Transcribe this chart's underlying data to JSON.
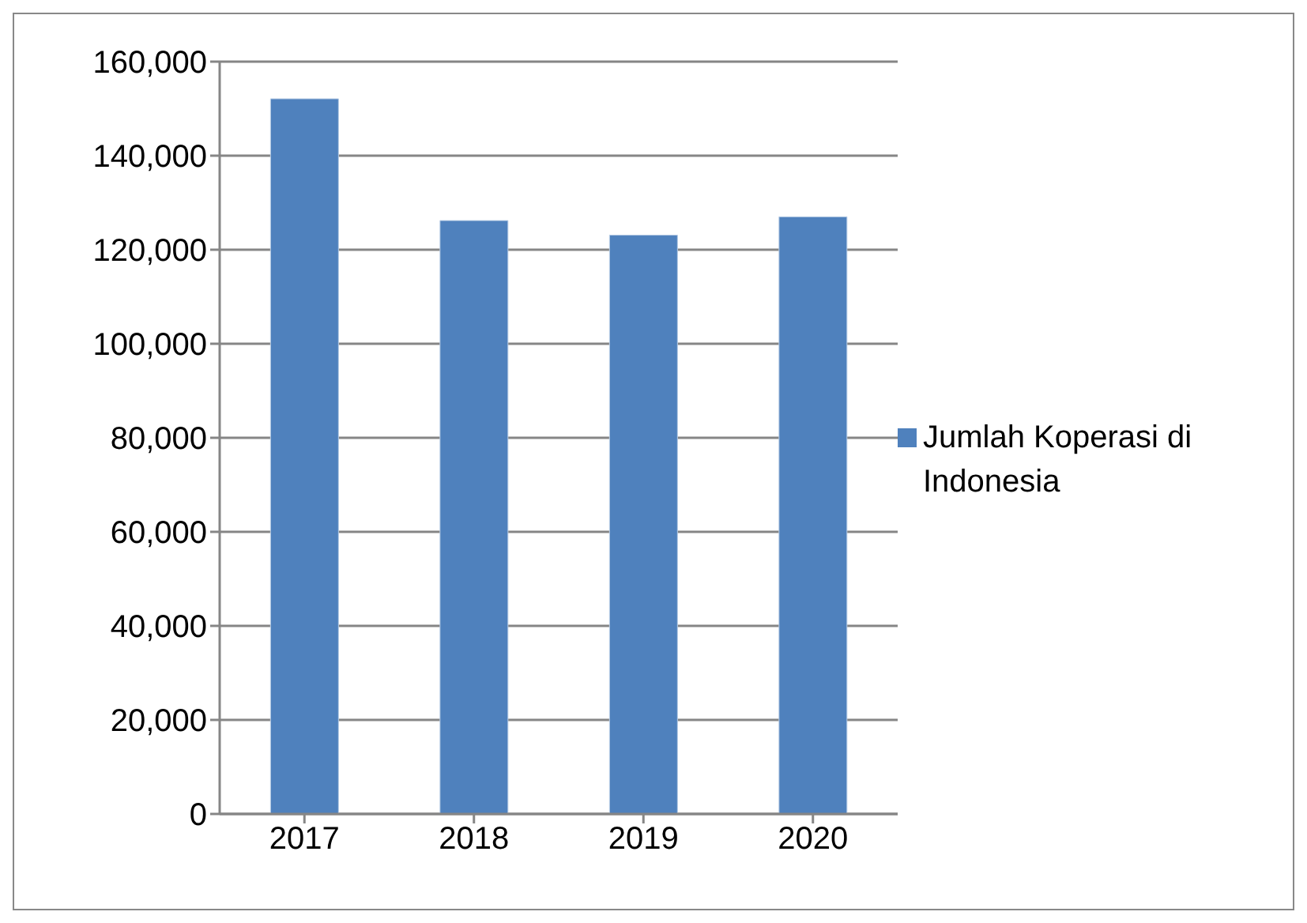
{
  "chart_data": {
    "type": "bar",
    "categories": [
      "2017",
      "2018",
      "2019",
      "2020"
    ],
    "series": [
      {
        "name": "Jumlah Koperasi di Indonesia",
        "color": "#4f81bd",
        "values": [
          152100,
          126200,
          123100,
          127000
        ]
      }
    ],
    "ylim": [
      0,
      160000
    ],
    "yticks": [
      {
        "value": 0,
        "label": "0"
      },
      {
        "value": 20000,
        "label": "20,000"
      },
      {
        "value": 40000,
        "label": "40,000"
      },
      {
        "value": 60000,
        "label": "60,000"
      },
      {
        "value": 80000,
        "label": "80,000"
      },
      {
        "value": 100000,
        "label": "100,000"
      },
      {
        "value": 120000,
        "label": "120,000"
      },
      {
        "value": 140000,
        "label": "140,000"
      },
      {
        "value": 160000,
        "label": "160,000"
      }
    ],
    "grid": "y",
    "legend": "right"
  }
}
